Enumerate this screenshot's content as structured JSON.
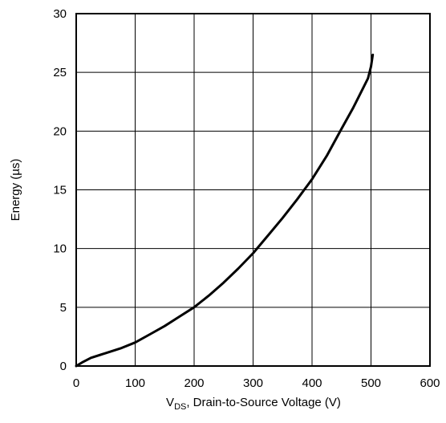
{
  "chart_data": {
    "type": "line",
    "title": "",
    "xlabel_prefix": "V",
    "xlabel_subscript": "DS",
    "xlabel_rest": ", Drain-to-Source Voltage (V)",
    "ylabel": "Energy (µs)",
    "xlim": [
      0,
      600
    ],
    "ylim": [
      0,
      30
    ],
    "x_ticks": [
      0,
      100,
      200,
      300,
      400,
      500,
      600
    ],
    "y_ticks": [
      0,
      5,
      10,
      15,
      20,
      25,
      30
    ],
    "grid": true,
    "series": [
      {
        "x": [
          0,
          10,
          25,
          50,
          75,
          100,
          125,
          150,
          175,
          200,
          225,
          250,
          275,
          300,
          325,
          350,
          375,
          400,
          425,
          450,
          470,
          485,
          495,
          500,
          503
        ],
        "y": [
          0,
          0.3,
          0.7,
          1.1,
          1.5,
          2.0,
          2.7,
          3.4,
          4.2,
          5.0,
          6.0,
          7.1,
          8.3,
          9.6,
          11.1,
          12.6,
          14.2,
          15.9,
          17.9,
          20.2,
          22.0,
          23.5,
          24.5,
          25.5,
          26.5
        ]
      }
    ]
  }
}
